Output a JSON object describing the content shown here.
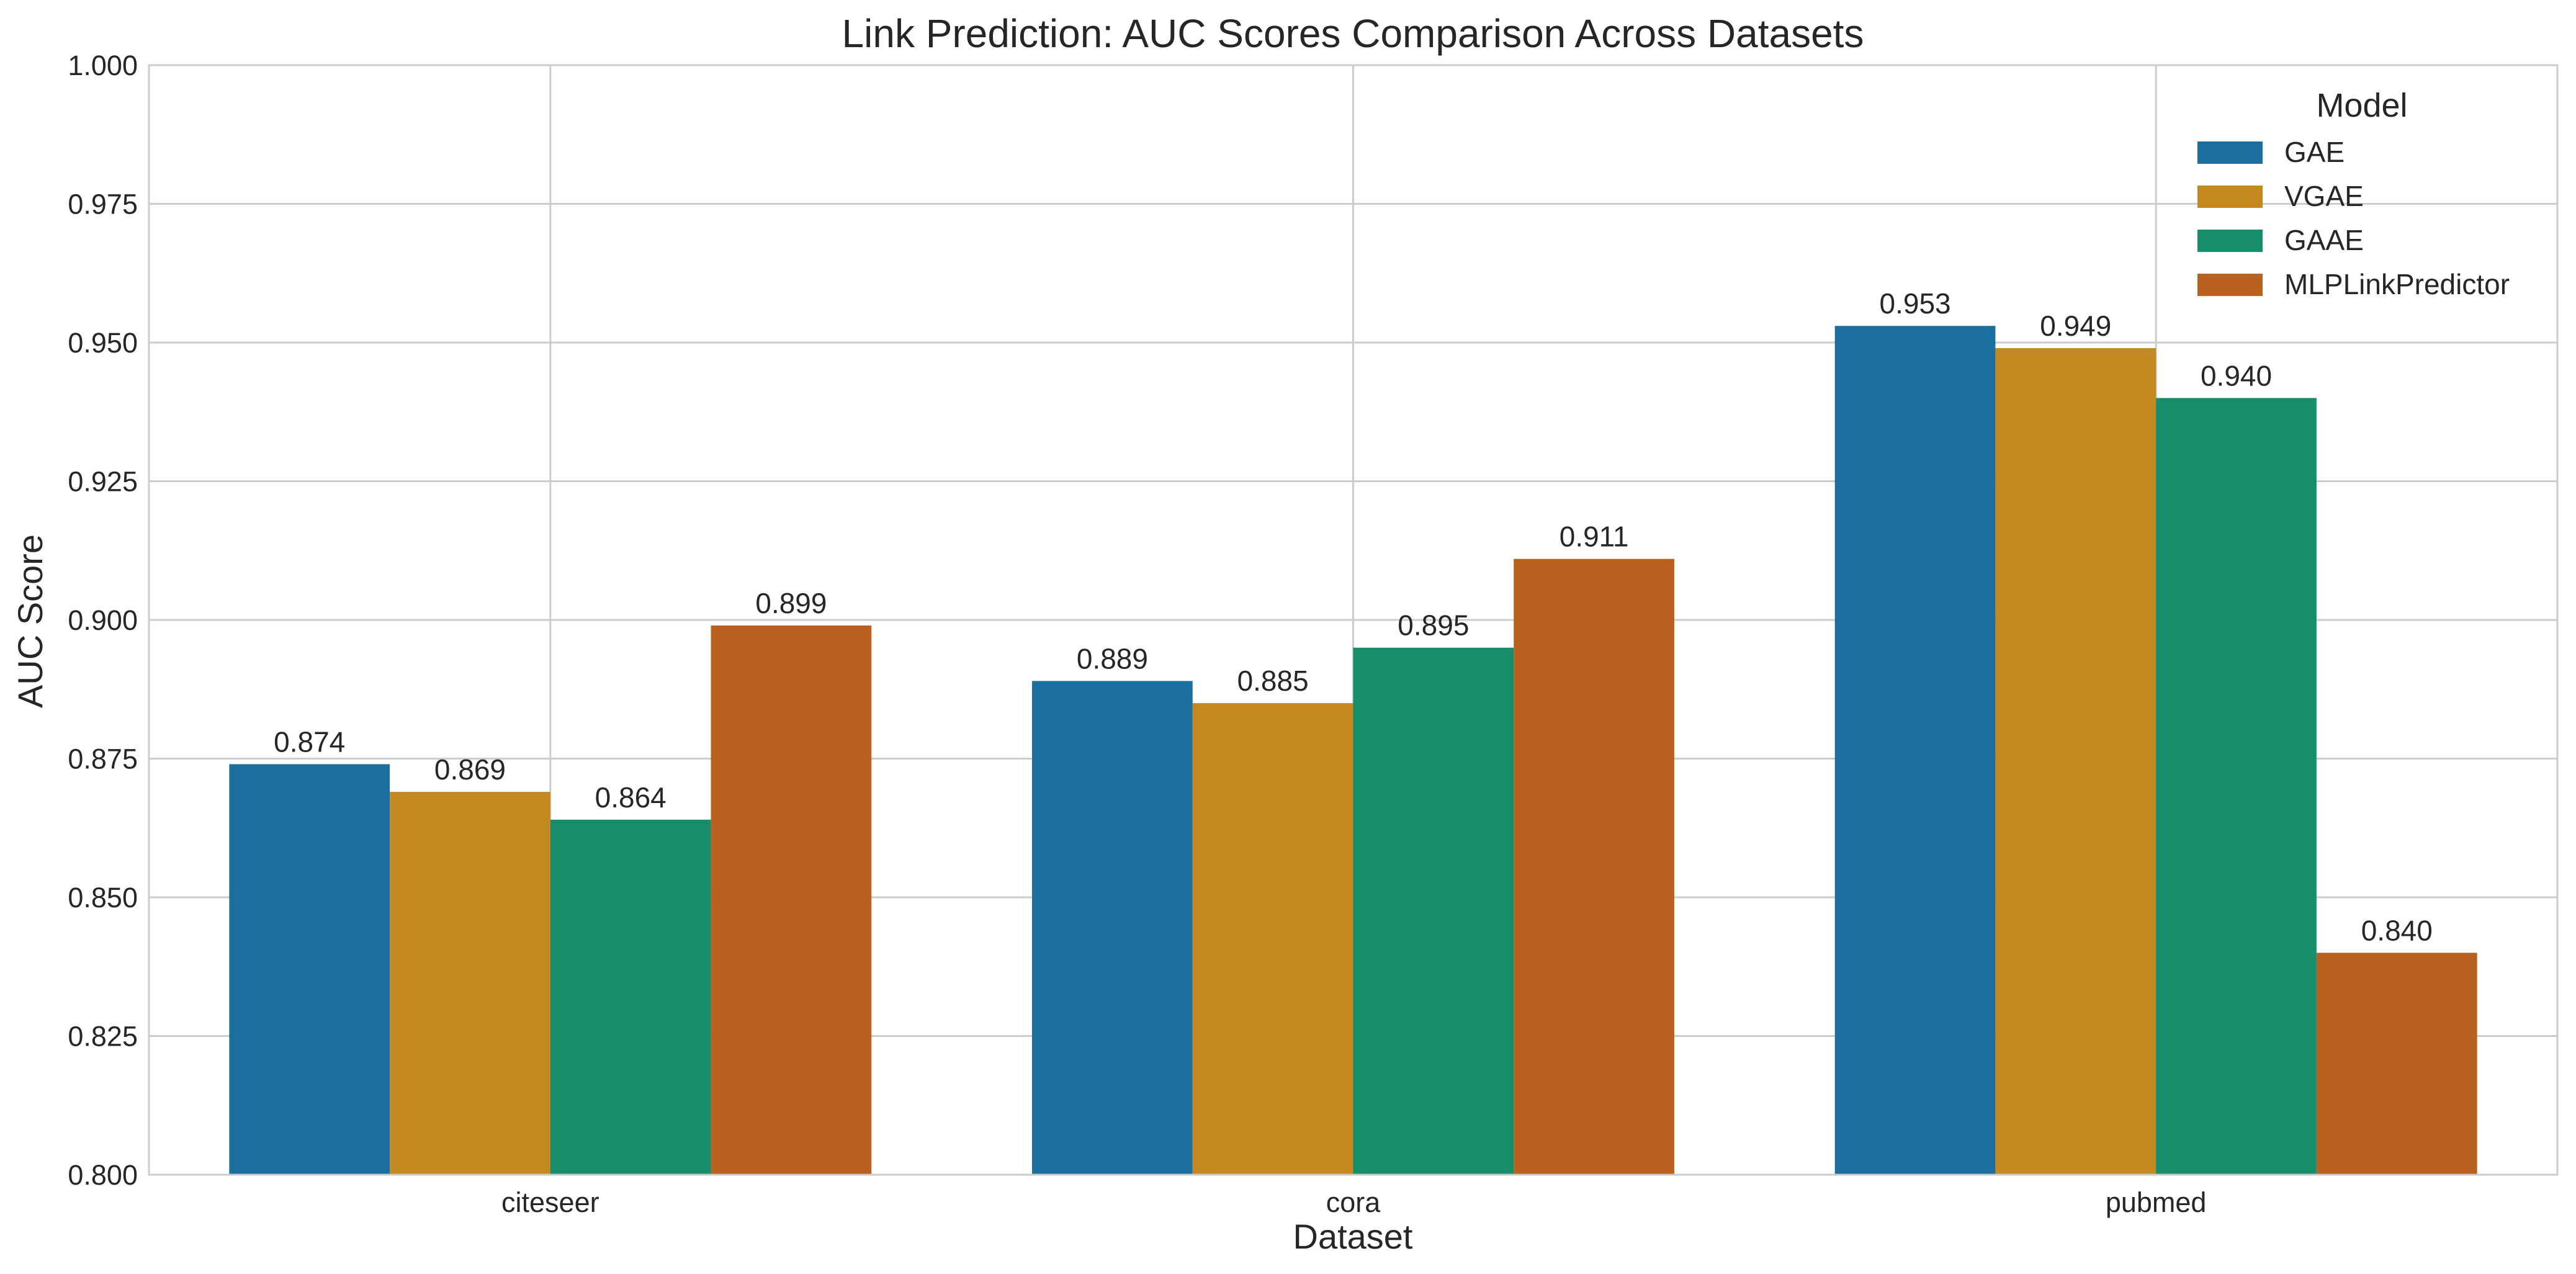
{
  "chart_data": {
    "type": "bar",
    "title": "Link Prediction: AUC Scores Comparison Across Datasets",
    "xlabel": "Dataset",
    "ylabel": "AUC Score",
    "categories": [
      "citeseer",
      "cora",
      "pubmed"
    ],
    "ylim": [
      0.8,
      1.0
    ],
    "yticks": [
      "0.800",
      "0.825",
      "0.850",
      "0.875",
      "0.900",
      "0.925",
      "0.950",
      "0.975",
      "1.000"
    ],
    "grid": true,
    "legend": {
      "title": "Model",
      "placement": "top-right"
    },
    "series": [
      {
        "name": "GAE",
        "color": "#1a6f9e",
        "values": [
          0.874,
          0.889,
          0.953
        ],
        "labels": [
          "0.874",
          "0.889",
          "0.953"
        ]
      },
      {
        "name": "VGAE",
        "color": "#c38920",
        "values": [
          0.869,
          0.885,
          0.949
        ],
        "labels": [
          "0.869",
          "0.885",
          "0.949"
        ]
      },
      {
        "name": "GAAE",
        "color": "#168e6b",
        "values": [
          0.864,
          0.895,
          0.94
        ],
        "labels": [
          "0.864",
          "0.895",
          "0.940"
        ]
      },
      {
        "name": "MLPLinkPredictor",
        "color": "#b9611e",
        "values": [
          0.899,
          0.911,
          0.84
        ],
        "labels": [
          "0.899",
          "0.911",
          "0.840"
        ]
      }
    ]
  }
}
